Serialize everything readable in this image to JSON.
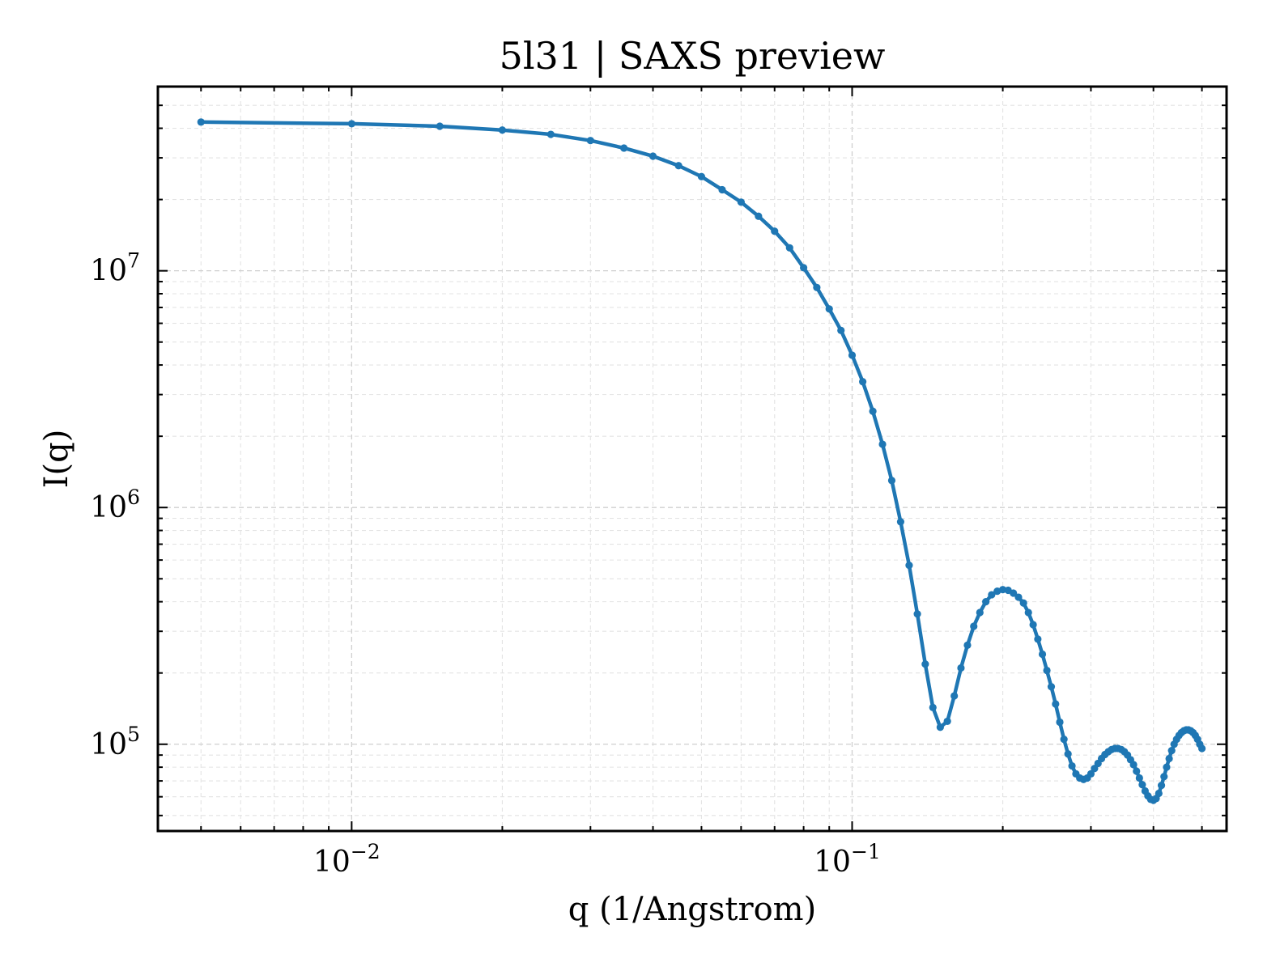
{
  "chart_data": {
    "type": "line",
    "title": "5l31 | SAXS preview",
    "xlabel": "q (1/Angstrom)",
    "ylabel": "I(q)",
    "x_scale": "log",
    "y_scale": "log",
    "xlim": [
      0.0041,
      0.56
    ],
    "ylim": [
      43000,
      60000000
    ],
    "grid": true,
    "legend": "none",
    "x_ticks": [
      {
        "value": 0.01,
        "base": "10",
        "exp": "−2"
      },
      {
        "value": 0.1,
        "base": "10",
        "exp": "−1"
      }
    ],
    "y_ticks": [
      {
        "value": 100000,
        "base": "10",
        "exp": "5"
      },
      {
        "value": 1000000,
        "base": "10",
        "exp": "6"
      },
      {
        "value": 10000000,
        "base": "10",
        "exp": "7"
      }
    ],
    "series": [
      {
        "color": "#1f77b4",
        "marker": "circle",
        "x": [
          0.005,
          0.01,
          0.015,
          0.02,
          0.025,
          0.03,
          0.035,
          0.04,
          0.045,
          0.05,
          0.055,
          0.06,
          0.065,
          0.07,
          0.075,
          0.08,
          0.085,
          0.09,
          0.095,
          0.1,
          0.105,
          0.11,
          0.115,
          0.12,
          0.125,
          0.13,
          0.135,
          0.14,
          0.145,
          0.15,
          0.155,
          0.16,
          0.165,
          0.17,
          0.175,
          0.18,
          0.185,
          0.19,
          0.195,
          0.2,
          0.205,
          0.21,
          0.215,
          0.22,
          0.225,
          0.23,
          0.235,
          0.24,
          0.245,
          0.25,
          0.255,
          0.26,
          0.265,
          0.27,
          0.275,
          0.28,
          0.285,
          0.29,
          0.295,
          0.3,
          0.305,
          0.31,
          0.315,
          0.32,
          0.325,
          0.33,
          0.335,
          0.34,
          0.345,
          0.35,
          0.355,
          0.36,
          0.365,
          0.37,
          0.375,
          0.38,
          0.385,
          0.39,
          0.395,
          0.4,
          0.405,
          0.41,
          0.415,
          0.42,
          0.425,
          0.43,
          0.435,
          0.44,
          0.445,
          0.45,
          0.455,
          0.46,
          0.465,
          0.47,
          0.475,
          0.48,
          0.485,
          0.49,
          0.495,
          0.5
        ],
        "y": [
          42500000,
          41800000,
          40800000,
          39300000,
          37700000,
          35500000,
          33000000,
          30500000,
          27800000,
          25000000,
          22000000,
          19500000,
          17000000,
          14700000,
          12500000,
          10300000,
          8500000,
          6900000,
          5600000,
          4400000,
          3400000,
          2550000,
          1850000,
          1300000,
          870000,
          570000,
          355000,
          218000,
          143000,
          118000,
          125000,
          160000,
          210000,
          262000,
          315000,
          360000,
          400000,
          428000,
          443000,
          450000,
          447000,
          435000,
          418000,
          395000,
          360000,
          320000,
          278000,
          240000,
          205000,
          175000,
          148000,
          124000,
          105000,
          91000,
          81000,
          75000,
          72000,
          71000,
          72000,
          75000,
          79000,
          83000,
          87000,
          90500,
          93000,
          95000,
          96000,
          96000,
          95000,
          93000,
          90000,
          86000,
          82000,
          77000,
          72000,
          67500,
          63500,
          60500,
          58500,
          58000,
          59000,
          62000,
          67000,
          73000,
          80000,
          87000,
          94000,
          100000,
          105000,
          109000,
          112000,
          114000,
          115000,
          115000,
          114000,
          112000,
          109000,
          105000,
          100000,
          96000
        ]
      }
    ]
  }
}
